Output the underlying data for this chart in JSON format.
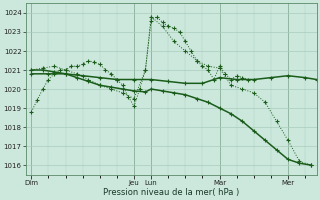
{
  "background_color": "#cce8dc",
  "grid_color": "#aaccbb",
  "line_color": "#1a5c1a",
  "xlabel": "Pression niveau de la mer( hPa )",
  "ylim": [
    1015.5,
    1024.5
  ],
  "yticks": [
    1016,
    1017,
    1018,
    1019,
    1020,
    1021,
    1022,
    1023,
    1024
  ],
  "day_labels": [
    "Dim",
    "Jeu",
    "Lun",
    "Mar",
    "Mer"
  ],
  "day_positions": [
    0,
    72,
    84,
    132,
    180
  ],
  "xlim": [
    -4,
    200
  ],
  "series1_x": [
    0,
    4,
    8,
    12,
    16,
    20,
    24,
    28,
    32,
    36,
    40,
    44,
    48,
    52,
    56,
    60,
    64,
    68,
    72,
    76,
    80,
    84,
    88,
    92,
    96,
    100,
    104,
    108,
    112,
    116,
    120,
    124,
    128,
    132,
    136,
    140,
    144,
    148,
    152
  ],
  "series1_y": [
    1018.8,
    1019.4,
    1020.0,
    1020.5,
    1020.8,
    1021.0,
    1021.0,
    1021.2,
    1021.2,
    1021.3,
    1021.5,
    1021.4,
    1021.3,
    1021.0,
    1020.8,
    1020.5,
    1020.2,
    1019.6,
    1019.1,
    1020.0,
    1021.0,
    1023.6,
    1023.8,
    1023.5,
    1023.3,
    1023.2,
    1023.0,
    1022.5,
    1022.0,
    1021.5,
    1021.2,
    1021.0,
    1020.5,
    1021.2,
    1020.8,
    1020.5,
    1020.7,
    1020.6,
    1020.5
  ],
  "series2_x": [
    0,
    12,
    24,
    36,
    48,
    60,
    72,
    84,
    96,
    108,
    120,
    132,
    144,
    156,
    168,
    180,
    192,
    200
  ],
  "series2_y": [
    1020.8,
    1020.8,
    1020.8,
    1020.7,
    1020.6,
    1020.5,
    1020.5,
    1020.5,
    1020.4,
    1020.3,
    1020.3,
    1020.6,
    1020.5,
    1020.5,
    1020.6,
    1020.7,
    1020.6,
    1020.5
  ],
  "series3_x": [
    0,
    8,
    16,
    24,
    32,
    40,
    48,
    56,
    64,
    72,
    80,
    84,
    92,
    100,
    108,
    116,
    124,
    132,
    140,
    148,
    156,
    164,
    172,
    180,
    188,
    196
  ],
  "series3_y": [
    1021.0,
    1021.0,
    1020.9,
    1020.8,
    1020.6,
    1020.4,
    1020.2,
    1020.1,
    1020.0,
    1019.9,
    1019.85,
    1020.0,
    1019.9,
    1019.8,
    1019.7,
    1019.5,
    1019.3,
    1019.0,
    1018.7,
    1018.3,
    1017.8,
    1017.3,
    1016.8,
    1016.3,
    1016.1,
    1016.0
  ],
  "series4_x": [
    0,
    8,
    16,
    24,
    32,
    40,
    48,
    56,
    64,
    72,
    80,
    84,
    92,
    100,
    108,
    116,
    124,
    132,
    140,
    148,
    156,
    164,
    172,
    180,
    188,
    196
  ],
  "series4_y": [
    1021.0,
    1021.1,
    1021.2,
    1021.0,
    1020.8,
    1020.5,
    1020.2,
    1020.0,
    1019.8,
    1019.5,
    1021.0,
    1023.8,
    1023.3,
    1022.5,
    1022.0,
    1021.5,
    1021.2,
    1021.1,
    1020.2,
    1020.0,
    1019.8,
    1019.3,
    1018.3,
    1017.3,
    1016.2,
    1016.0
  ]
}
